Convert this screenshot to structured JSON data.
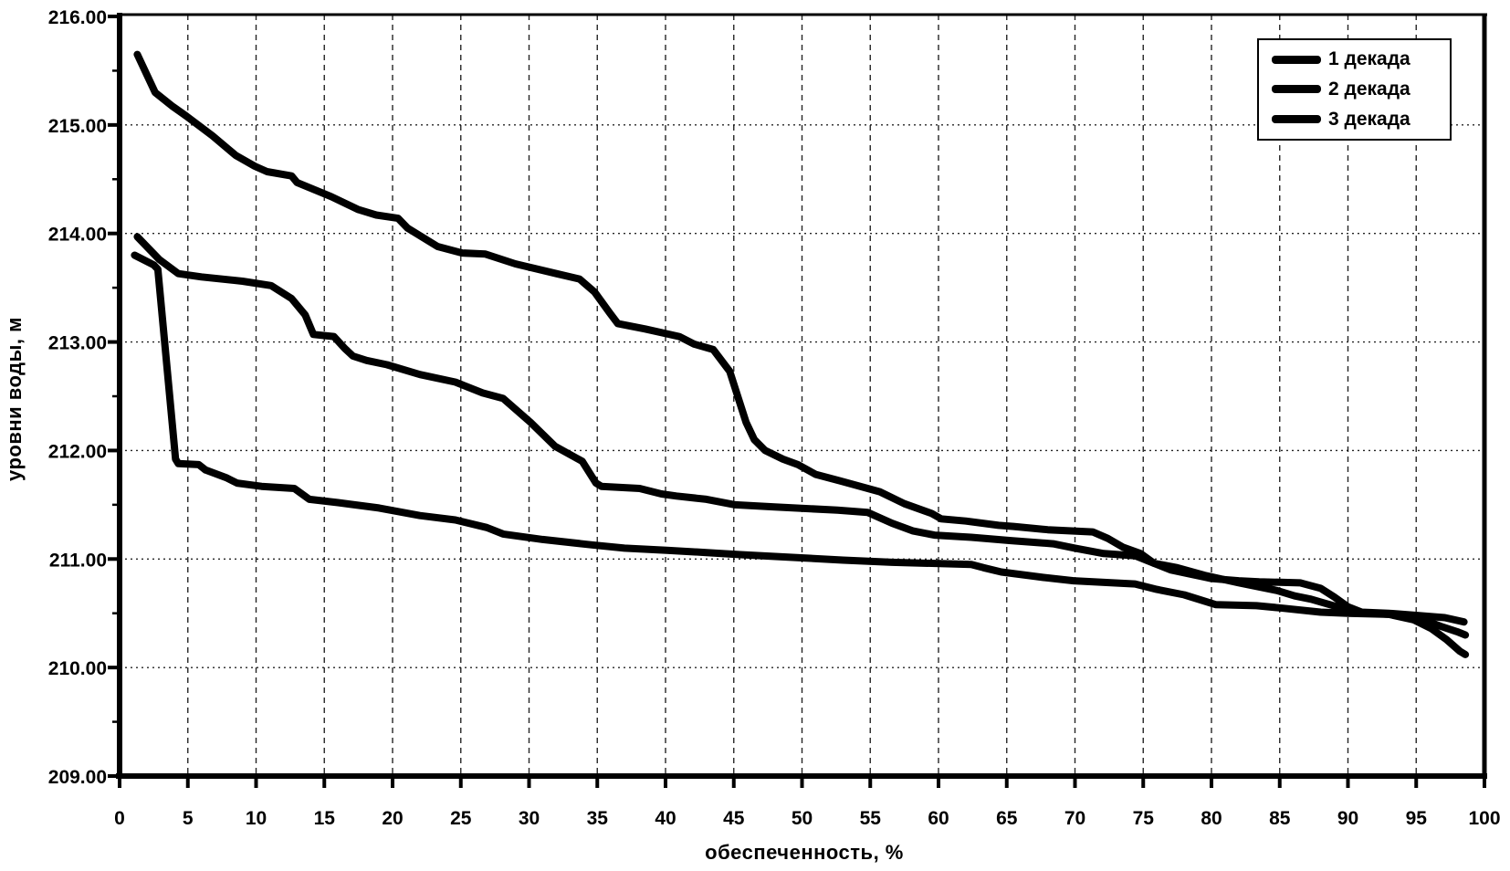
{
  "figure": {
    "background": "#ffffff",
    "ink_color": "#000000"
  },
  "chart_data": {
    "type": "line",
    "title": "",
    "xlabel": "обеспеченность, %",
    "ylabel": "уровни воды, м",
    "xlim": [
      0,
      100
    ],
    "ylim": [
      209,
      216
    ],
    "x_ticks": [
      0,
      5,
      10,
      15,
      20,
      25,
      30,
      35,
      40,
      45,
      50,
      55,
      60,
      65,
      70,
      75,
      80,
      85,
      90,
      95,
      100
    ],
    "x_tick_labels": [
      "0",
      "5",
      "10",
      "15",
      "20",
      "25",
      "30",
      "35",
      "40",
      "45",
      "50",
      "55",
      "60",
      "65",
      "70",
      "75",
      "80",
      "85",
      "90",
      "95",
      "100"
    ],
    "y_ticks": [
      209,
      210,
      211,
      212,
      213,
      214,
      215,
      216
    ],
    "y_tick_labels": [
      "209.00",
      "210.00",
      "211.00",
      "212.00",
      "213.00",
      "214.00",
      "215.00",
      "216.00"
    ],
    "grid": {
      "visible": true,
      "vertical_every_pct": 5,
      "horizontal_every_m": 1,
      "style": "dashed"
    },
    "legend_position": "top-right",
    "series_color": "#000000",
    "series": [
      {
        "name": "1 декада",
        "points": [
          [
            1.3,
            215.65
          ],
          [
            2.6,
            215.3
          ],
          [
            3.9,
            215.17
          ],
          [
            4.9,
            215.08
          ],
          [
            6.8,
            214.9
          ],
          [
            8.5,
            214.72
          ],
          [
            9.9,
            214.62
          ],
          [
            10.8,
            214.57
          ],
          [
            12.6,
            214.53
          ],
          [
            13.0,
            214.47
          ],
          [
            15.5,
            214.34
          ],
          [
            17.5,
            214.22
          ],
          [
            18.8,
            214.17
          ],
          [
            20.4,
            214.14
          ],
          [
            21.1,
            214.05
          ],
          [
            23.3,
            213.88
          ],
          [
            25.1,
            213.82
          ],
          [
            26.8,
            213.81
          ],
          [
            29.0,
            213.72
          ],
          [
            32.0,
            213.63
          ],
          [
            33.7,
            213.58
          ],
          [
            34.8,
            213.46
          ],
          [
            35.9,
            213.27
          ],
          [
            36.5,
            213.17
          ],
          [
            38.5,
            213.12
          ],
          [
            41.0,
            213.05
          ],
          [
            42.1,
            212.98
          ],
          [
            43.5,
            212.93
          ],
          [
            44.7,
            212.73
          ],
          [
            45.9,
            212.26
          ],
          [
            46.5,
            212.1
          ],
          [
            47.3,
            212.0
          ],
          [
            48.6,
            211.92
          ],
          [
            49.7,
            211.87
          ],
          [
            51.0,
            211.78
          ],
          [
            52.8,
            211.72
          ],
          [
            55.7,
            211.62
          ],
          [
            57.5,
            211.51
          ],
          [
            59.5,
            211.42
          ],
          [
            60.2,
            211.37
          ],
          [
            62.0,
            211.35
          ],
          [
            64.4,
            211.31
          ],
          [
            65.5,
            211.3
          ],
          [
            68.0,
            211.27
          ],
          [
            71.3,
            211.25
          ],
          [
            72.4,
            211.19
          ],
          [
            73.5,
            211.11
          ],
          [
            74.8,
            211.05
          ],
          [
            75.8,
            210.96
          ],
          [
            77.0,
            210.9
          ],
          [
            78.5,
            210.86
          ],
          [
            80.0,
            210.82
          ],
          [
            82.0,
            210.8
          ],
          [
            83.5,
            210.79
          ],
          [
            86.5,
            210.78
          ],
          [
            88.0,
            210.73
          ],
          [
            89.0,
            210.65
          ],
          [
            90.0,
            210.56
          ],
          [
            91.0,
            210.51
          ],
          [
            93.0,
            210.5
          ],
          [
            95.1,
            210.48
          ],
          [
            97.1,
            210.46
          ],
          [
            98.5,
            210.42
          ]
        ]
      },
      {
        "name": "2 декада",
        "points": [
          [
            1.3,
            213.97
          ],
          [
            2.9,
            213.76
          ],
          [
            4.3,
            213.63
          ],
          [
            6.0,
            213.6
          ],
          [
            9.0,
            213.56
          ],
          [
            11.1,
            213.52
          ],
          [
            12.6,
            213.4
          ],
          [
            13.6,
            213.25
          ],
          [
            14.2,
            213.07
          ],
          [
            15.7,
            213.05
          ],
          [
            16.5,
            212.94
          ],
          [
            17.1,
            212.87
          ],
          [
            18.1,
            212.83
          ],
          [
            19.6,
            212.79
          ],
          [
            22.0,
            212.7
          ],
          [
            24.6,
            212.63
          ],
          [
            26.6,
            212.53
          ],
          [
            28.1,
            212.48
          ],
          [
            30.1,
            212.26
          ],
          [
            31.9,
            212.04
          ],
          [
            33.9,
            211.9
          ],
          [
            34.9,
            211.7
          ],
          [
            35.3,
            211.67
          ],
          [
            38.1,
            211.65
          ],
          [
            39.7,
            211.6
          ],
          [
            40.8,
            211.58
          ],
          [
            43.0,
            211.55
          ],
          [
            45.1,
            211.5
          ],
          [
            48.0,
            211.48
          ],
          [
            52.6,
            211.45
          ],
          [
            54.8,
            211.43
          ],
          [
            56.6,
            211.33
          ],
          [
            58.1,
            211.26
          ],
          [
            59.7,
            211.22
          ],
          [
            62.4,
            211.2
          ],
          [
            65.3,
            211.17
          ],
          [
            68.4,
            211.14
          ],
          [
            70.0,
            211.1
          ],
          [
            72.1,
            211.05
          ],
          [
            74.4,
            211.03
          ],
          [
            75.8,
            210.96
          ],
          [
            77.5,
            210.92
          ],
          [
            79.5,
            210.85
          ],
          [
            82.0,
            210.78
          ],
          [
            84.8,
            210.71
          ],
          [
            86.1,
            210.66
          ],
          [
            87.3,
            210.63
          ],
          [
            88.1,
            210.6
          ],
          [
            89.5,
            210.55
          ],
          [
            90.5,
            210.51
          ],
          [
            93.0,
            210.49
          ],
          [
            95.1,
            210.46
          ],
          [
            96.8,
            210.38
          ],
          [
            98.0,
            210.33
          ],
          [
            98.6,
            210.3
          ]
        ]
      },
      {
        "name": "3 декада",
        "points": [
          [
            1.1,
            213.8
          ],
          [
            2.5,
            213.71
          ],
          [
            2.8,
            213.67
          ],
          [
            4.1,
            211.92
          ],
          [
            4.3,
            211.88
          ],
          [
            5.8,
            211.87
          ],
          [
            6.3,
            211.82
          ],
          [
            7.8,
            211.75
          ],
          [
            8.6,
            211.7
          ],
          [
            10.4,
            211.67
          ],
          [
            12.8,
            211.65
          ],
          [
            13.9,
            211.55
          ],
          [
            16.0,
            211.52
          ],
          [
            19.0,
            211.47
          ],
          [
            22.0,
            211.4
          ],
          [
            24.6,
            211.36
          ],
          [
            26.9,
            211.29
          ],
          [
            28.1,
            211.23
          ],
          [
            31.0,
            211.18
          ],
          [
            34.6,
            211.13
          ],
          [
            37.0,
            211.1
          ],
          [
            40.1,
            211.08
          ],
          [
            43.0,
            211.06
          ],
          [
            45.5,
            211.04
          ],
          [
            50.1,
            211.01
          ],
          [
            53.0,
            210.99
          ],
          [
            56.6,
            210.97
          ],
          [
            62.4,
            210.95
          ],
          [
            63.3,
            210.92
          ],
          [
            64.6,
            210.88
          ],
          [
            67.7,
            210.83
          ],
          [
            69.9,
            210.8
          ],
          [
            74.4,
            210.77
          ],
          [
            76.0,
            210.72
          ],
          [
            78.0,
            210.67
          ],
          [
            80.3,
            210.58
          ],
          [
            83.3,
            210.57
          ],
          [
            85.0,
            210.55
          ],
          [
            88.0,
            210.51
          ],
          [
            90.0,
            210.5
          ],
          [
            93.0,
            210.49
          ],
          [
            94.8,
            210.44
          ],
          [
            96.1,
            210.36
          ],
          [
            97.2,
            210.26
          ],
          [
            98.2,
            210.15
          ],
          [
            98.6,
            210.12
          ]
        ]
      }
    ]
  }
}
